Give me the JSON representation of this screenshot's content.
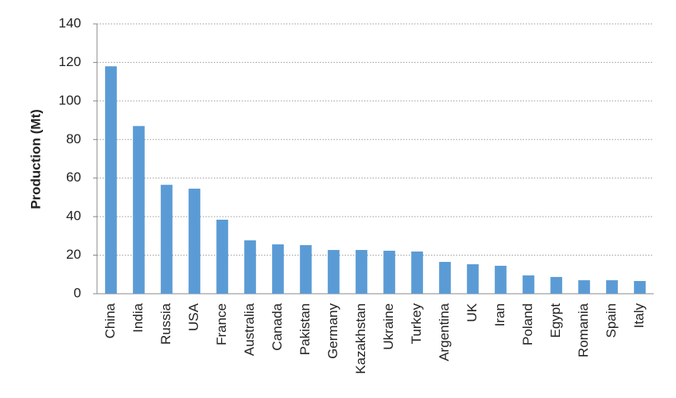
{
  "chart_data": {
    "type": "bar",
    "ylabel": "Production (Mt)",
    "categories": [
      "China",
      "India",
      "Russia",
      "USA",
      "France",
      "Australia",
      "Canada",
      "Pakistan",
      "Germany",
      "Kazakhstan",
      "Ukraine",
      "Turkey",
      "Argentina",
      "UK",
      "Iran",
      "Poland",
      "Egypt",
      "Romania",
      "Spain",
      "Italy"
    ],
    "values": [
      118,
      87,
      56.5,
      54.5,
      38.4,
      27.7,
      25.6,
      25.2,
      22.7,
      22.7,
      22.3,
      21.9,
      16.5,
      15.3,
      14.5,
      9.5,
      8.7,
      7,
      7,
      6.6
    ],
    "color": "#5b9bd5",
    "ylim": [
      0,
      140
    ],
    "yticks": [
      0,
      20,
      40,
      60,
      80,
      100,
      120,
      140
    ],
    "grid": true
  }
}
